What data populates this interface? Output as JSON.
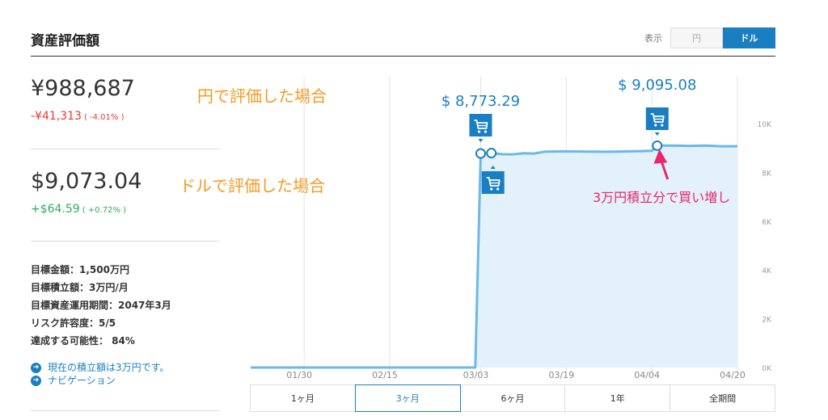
{
  "header": {
    "title": "資産評価額",
    "toggle_label": "表示",
    "toggle_yen": "円",
    "toggle_usd": "ドル",
    "active": "ドル"
  },
  "summary": {
    "yen": {
      "value": "¥988,687",
      "change": "-¥41,313",
      "change_pct": "( -4.01% )"
    },
    "usd": {
      "value": "$9,073.04",
      "change": "+$64.59",
      "change_pct": "( +0.72% )"
    }
  },
  "annotations": {
    "yen_label": "円で評価した場合",
    "usd_label": "ドルで評価した場合",
    "buy_label": "3万円積立分で買い増し",
    "price_1": "$ 8,773.29",
    "price_2": "$ 9,095.08"
  },
  "goals": [
    "目標金額：1,500万円",
    "目標積立額：3万円/月",
    "目標資産運用期間：2047年3月",
    "リスク許容度：5/5",
    "達成する可能性： 84%"
  ],
  "nav_links": [
    {
      "label": "現在の積立額は3万円です。"
    },
    {
      "label": "ナビゲーション"
    }
  ],
  "period_tabs": [
    "1ヶ月",
    "3ヶ月",
    "6ヶ月",
    "1年",
    "全期間"
  ],
  "active_period": "3ヶ月",
  "colors": {
    "accent": "#1a7fc2",
    "line": "#6cb8e6",
    "area": "#e3f1fb",
    "negative": "#e53935",
    "positive": "#2eaa5c",
    "annotation": "#f39a21",
    "callout": "#e8286d"
  },
  "chart_data": {
    "type": "area",
    "x_tick_labels": [
      "01/30",
      "02/15",
      "03/03",
      "03/19",
      "04/04",
      "04/20"
    ],
    "y_tick_labels": [
      "0K",
      "2K",
      "4K",
      "6K",
      "8K",
      "10K"
    ],
    "ylim": [
      0,
      11000
    ],
    "grid": "vertical",
    "series": [
      {
        "points": [
          [
            "01/20",
            0
          ],
          [
            "02/01",
            0
          ],
          [
            "02/15",
            0
          ],
          [
            "03/02",
            0
          ],
          [
            "03/03",
            8773.29
          ],
          [
            "03/05",
            8790
          ],
          [
            "03/07",
            8745
          ],
          [
            "03/09",
            8740
          ],
          [
            "03/11",
            8780
          ],
          [
            "03/13",
            8770
          ],
          [
            "03/15",
            8850
          ],
          [
            "03/19",
            8860
          ],
          [
            "03/23",
            8850
          ],
          [
            "03/27",
            8845
          ],
          [
            "03/31",
            8860
          ],
          [
            "04/04",
            8880
          ],
          [
            "04/05",
            9095.08
          ],
          [
            "04/08",
            9100
          ],
          [
            "04/11",
            9085
          ],
          [
            "04/14",
            9095
          ],
          [
            "04/17",
            9070
          ],
          [
            "04/20",
            9073.04
          ]
        ]
      }
    ],
    "buy_markers": [
      {
        "date": "03/03",
        "value": 8773.29
      },
      {
        "date": "03/05",
        "value": 8790
      },
      {
        "date": "04/05",
        "value": 9095.08
      }
    ]
  }
}
